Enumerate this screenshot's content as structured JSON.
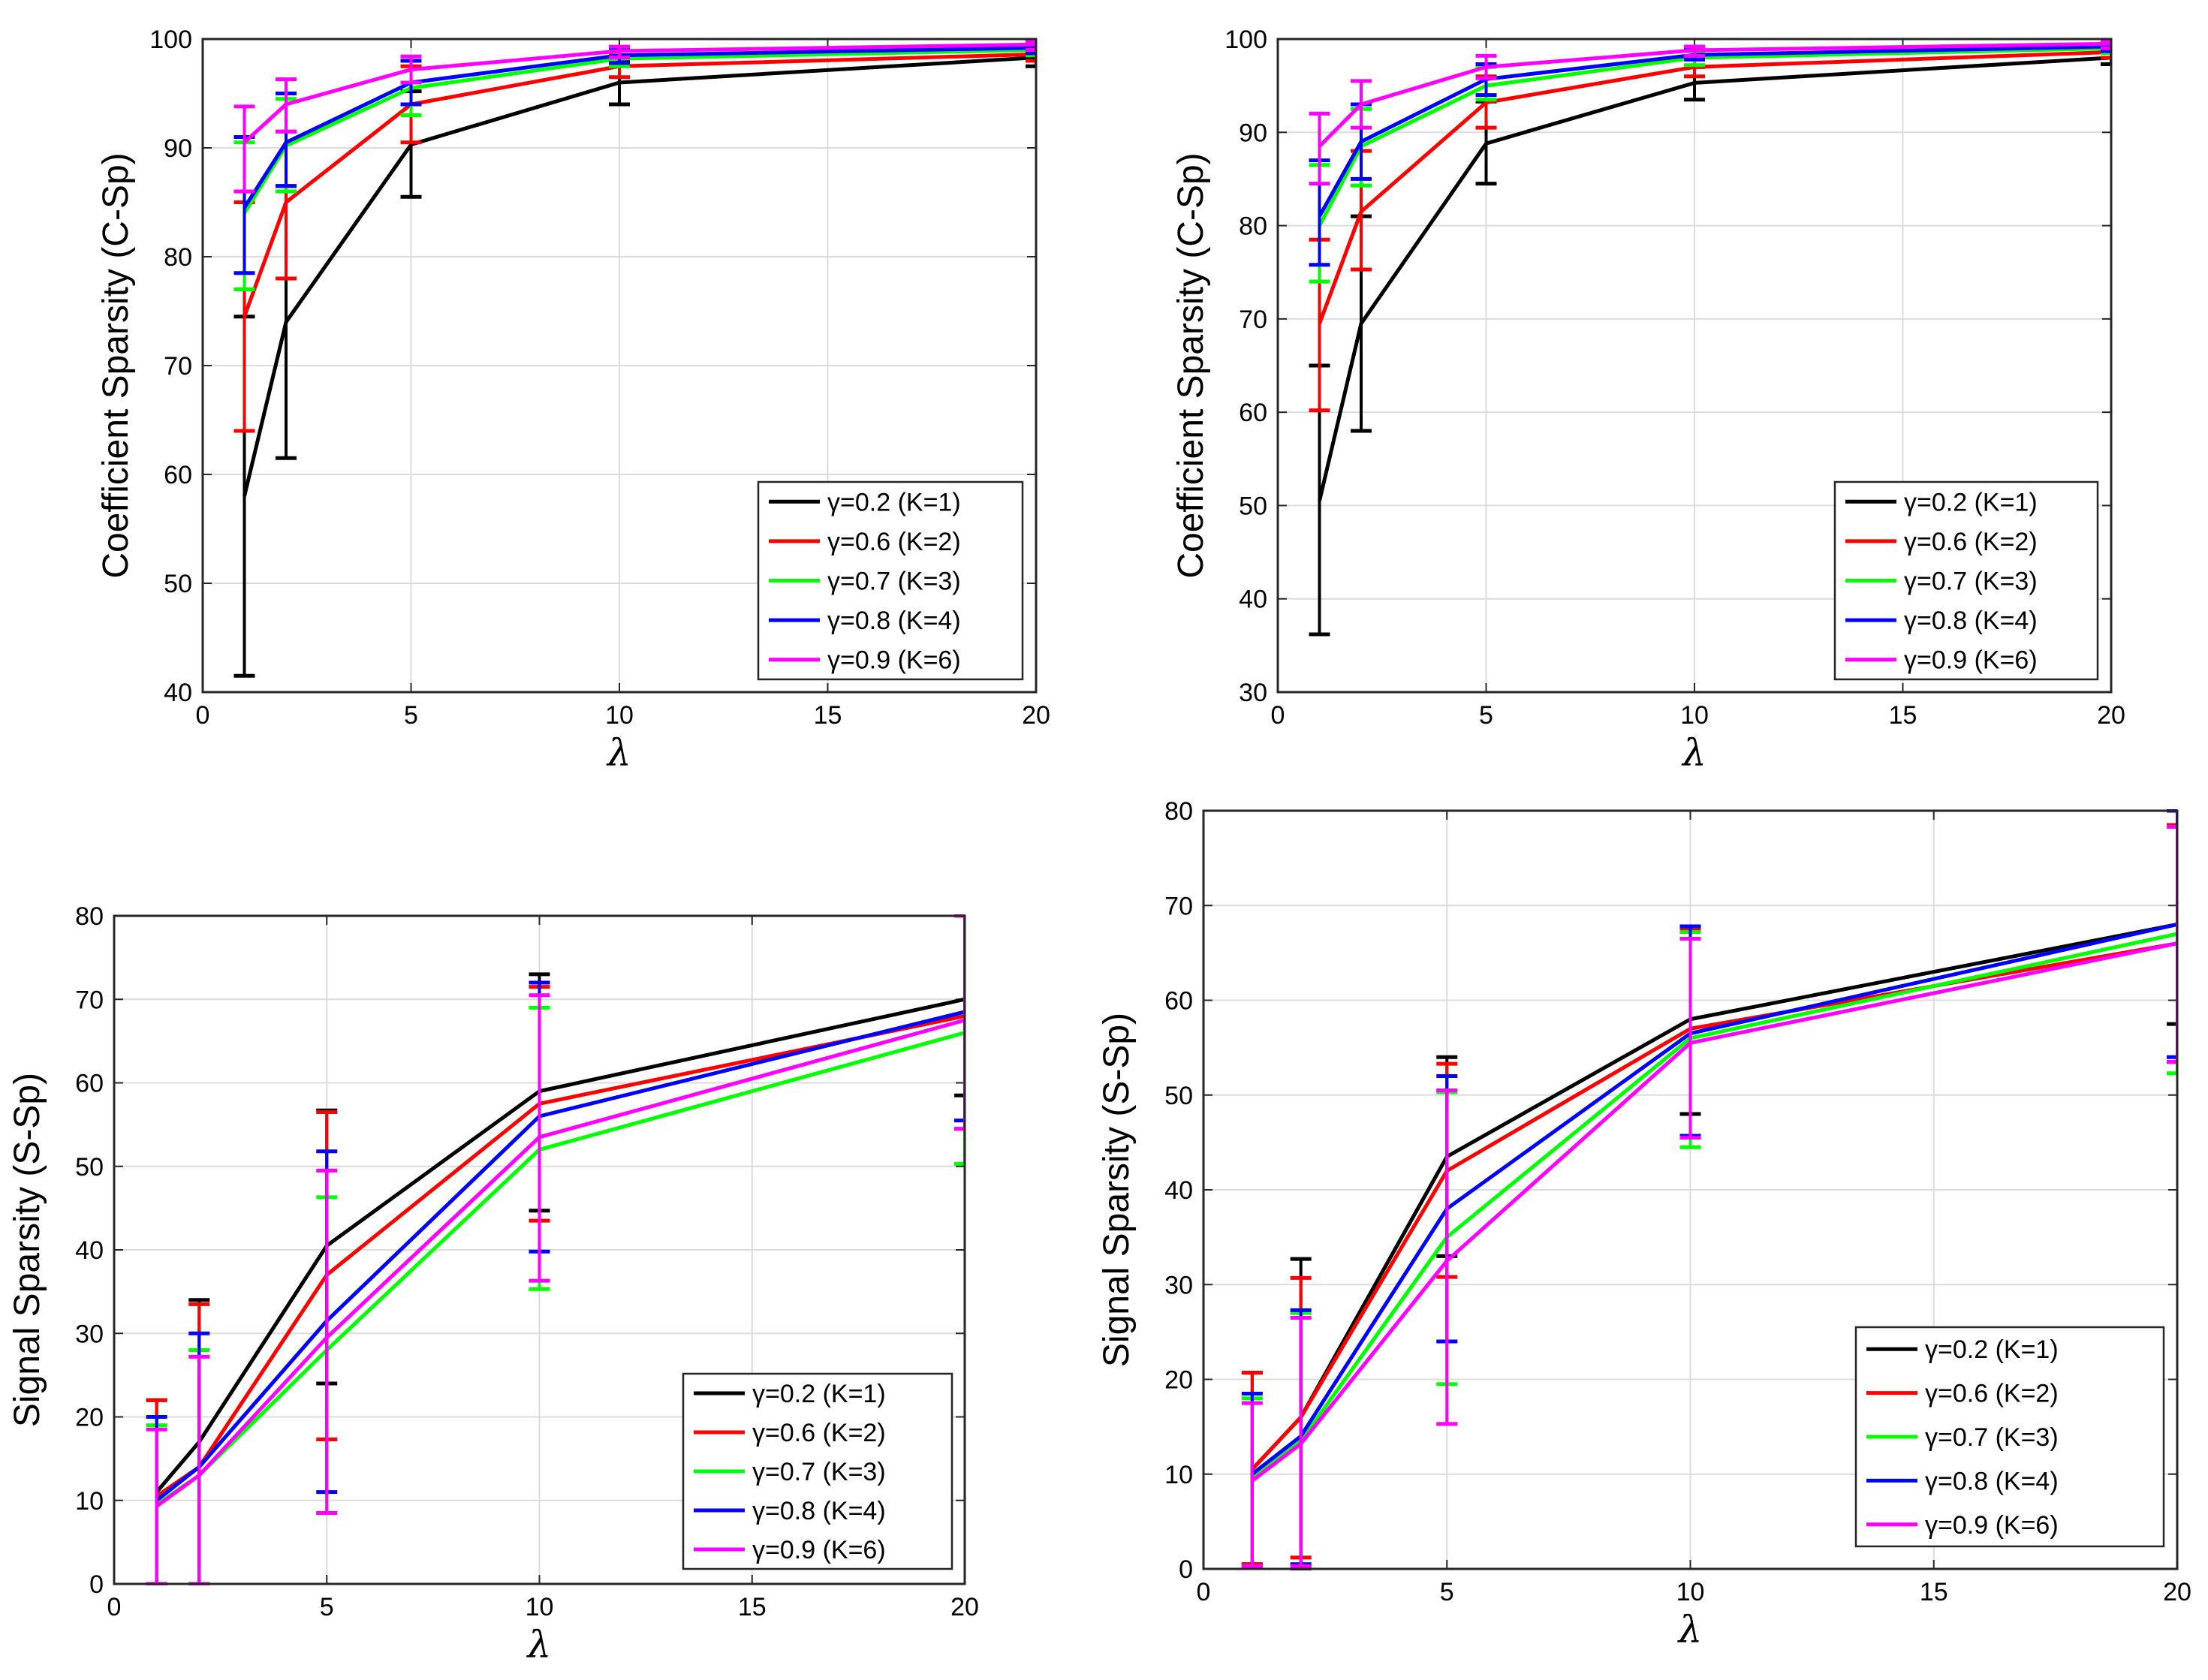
{
  "legend_labels": [
    "γ=0.2 (K=1)",
    "γ=0.6 (K=2)",
    "γ=0.7 (K=3)",
    "γ=0.8 (K=4)",
    "γ=0.9 (K=6)"
  ],
  "series_colors": [
    "#000000",
    "#ff0000",
    "#00ff00",
    "#0000ff",
    "#ff00ff"
  ],
  "chart_data": [
    {
      "type": "line",
      "panel": "top-left",
      "xlabel": "λ",
      "ylabel": "Coefficient Sparsity (C-Sp)",
      "xlim": [
        0,
        20
      ],
      "ylim": [
        40,
        100
      ],
      "xticks": [
        0,
        5,
        10,
        15,
        20
      ],
      "yticks": [
        40,
        50,
        60,
        70,
        80,
        90,
        100
      ],
      "grid": true,
      "legend_position": "bottom-right",
      "x": [
        1,
        2,
        5,
        10,
        20
      ],
      "series": [
        {
          "name": "γ=0.2 (K=1)",
          "values": [
            58,
            74,
            90.3,
            96,
            98.3
          ],
          "err_low": [
            41.5,
            61.5,
            85.5,
            94,
            97.5
          ],
          "err_high": [
            74.5,
            86.5,
            95.2,
            98,
            99
          ]
        },
        {
          "name": "γ=0.6 (K=2)",
          "values": [
            74.5,
            85,
            94,
            97.5,
            98.6
          ],
          "err_low": [
            64,
            78,
            90.5,
            96.5,
            98
          ],
          "err_high": [
            85,
            91.5,
            97.5,
            98.5,
            99.2
          ]
        },
        {
          "name": "γ=0.7 (K=3)",
          "values": [
            84,
            90.2,
            95.5,
            98.2,
            99
          ],
          "err_low": [
            77,
            86,
            93,
            97.5,
            98.5
          ],
          "err_high": [
            90.5,
            94.5,
            98,
            99,
            99.5
          ]
        },
        {
          "name": "γ=0.8 (K=4)",
          "values": [
            84.5,
            90.5,
            96,
            98.5,
            99.2
          ],
          "err_low": [
            78.5,
            86.5,
            94,
            97.8,
            98.7
          ],
          "err_high": [
            91,
            95,
            98,
            99.2,
            99.6
          ]
        },
        {
          "name": "γ=0.9 (K=6)",
          "values": [
            90.5,
            94,
            97.2,
            98.9,
            99.5
          ],
          "err_low": [
            86,
            91.5,
            96,
            98.3,
            99
          ],
          "err_high": [
            93.8,
            96.3,
            98.4,
            99.3,
            99.8
          ]
        }
      ]
    },
    {
      "type": "line",
      "panel": "top-right",
      "xlabel": "λ",
      "ylabel": "Coefficient Sparsity (C-Sp)",
      "xlim": [
        0,
        20
      ],
      "ylim": [
        30,
        100
      ],
      "xticks": [
        0,
        5,
        10,
        15,
        20
      ],
      "yticks": [
        30,
        40,
        50,
        60,
        70,
        80,
        90,
        100
      ],
      "grid": true,
      "legend_position": "bottom-right",
      "x": [
        1,
        2,
        5,
        10,
        20
      ],
      "series": [
        {
          "name": "γ=0.2 (K=1)",
          "values": [
            50.5,
            69.5,
            88.8,
            95.3,
            98
          ],
          "err_low": [
            36.2,
            58,
            84.5,
            93.5,
            97.3
          ],
          "err_high": [
            65,
            81,
            93.3,
            97,
            98.7
          ]
        },
        {
          "name": "γ=0.6 (K=2)",
          "values": [
            69.5,
            81.5,
            93.2,
            97,
            98.6
          ],
          "err_low": [
            60.2,
            75.3,
            90.5,
            96,
            98
          ],
          "err_high": [
            78.5,
            88,
            96,
            98,
            99.2
          ]
        },
        {
          "name": "γ=0.7 (K=3)",
          "values": [
            80,
            88.5,
            95,
            98,
            99
          ],
          "err_low": [
            74,
            84.3,
            93.5,
            97.2,
            98.5
          ],
          "err_high": [
            86.5,
            92.5,
            97,
            98.7,
            99.5
          ]
        },
        {
          "name": "γ=0.8 (K=4)",
          "values": [
            81,
            89,
            95.7,
            98.3,
            99.2
          ],
          "err_low": [
            75.8,
            85,
            94,
            97.8,
            98.7
          ],
          "err_high": [
            87,
            93,
            97.3,
            99,
            99.6
          ]
        },
        {
          "name": "γ=0.9 (K=6)",
          "values": [
            88.5,
            93,
            97,
            98.8,
            99.5
          ],
          "err_low": [
            84.5,
            90.5,
            95.8,
            98.2,
            99
          ],
          "err_high": [
            92,
            95.5,
            98.2,
            99.2,
            99.8
          ]
        }
      ]
    },
    {
      "type": "line",
      "panel": "bottom-left",
      "xlabel": "λ",
      "ylabel": "Signal Sparsity (S-Sp)",
      "xlim": [
        0,
        20
      ],
      "ylim": [
        0,
        80
      ],
      "xticks": [
        0,
        5,
        10,
        15,
        20
      ],
      "yticks": [
        0,
        10,
        20,
        30,
        40,
        50,
        60,
        70,
        80
      ],
      "grid": true,
      "legend_position": "bottom-right",
      "x": [
        1,
        2,
        5,
        10,
        20
      ],
      "series": [
        {
          "name": "γ=0.2 (K=1)",
          "values": [
            11,
            17,
            40.5,
            59,
            70
          ],
          "err_low": [
            0,
            0,
            24,
            44.7,
            58.5
          ],
          "err_high": [
            22,
            34,
            56.7,
            73,
            80
          ]
        },
        {
          "name": "γ=0.6 (K=2)",
          "values": [
            10.5,
            14,
            37,
            57.5,
            68
          ],
          "err_low": [
            0,
            0,
            17.3,
            43.5,
            54.5
          ],
          "err_high": [
            22,
            33.5,
            56.5,
            71.5,
            80
          ]
        },
        {
          "name": "γ=0.7 (K=3)",
          "values": [
            9.5,
            13,
            28,
            52,
            66
          ],
          "err_low": [
            0,
            0,
            8.5,
            35.3,
            50.3
          ],
          "err_high": [
            19,
            28,
            46.3,
            69,
            80
          ]
        },
        {
          "name": "γ=0.8 (K=4)",
          "values": [
            10,
            14,
            31.5,
            56,
            68.5
          ],
          "err_low": [
            0,
            0,
            11,
            39.8,
            55.5
          ],
          "err_high": [
            20,
            30,
            51.8,
            72,
            80
          ]
        },
        {
          "name": "γ=0.9 (K=6)",
          "values": [
            9.3,
            13,
            29.5,
            53.5,
            67.5
          ],
          "err_low": [
            0,
            0,
            8.5,
            36.3,
            54.5
          ],
          "err_high": [
            18.5,
            27.2,
            49.5,
            70.5,
            80
          ]
        }
      ]
    },
    {
      "type": "line",
      "panel": "bottom-right",
      "xlabel": "λ",
      "ylabel": "Signal Sparsity (S-Sp)",
      "xlim": [
        0,
        20
      ],
      "ylim": [
        0,
        80
      ],
      "xticks": [
        0,
        5,
        10,
        15,
        20
      ],
      "yticks": [
        0,
        10,
        20,
        30,
        40,
        50,
        60,
        70,
        80
      ],
      "grid": true,
      "legend_position": "bottom-right",
      "x": [
        1,
        2,
        5,
        10,
        20
      ],
      "series": [
        {
          "name": "γ=0.2 (K=1)",
          "values": [
            10.5,
            16,
            43.5,
            58,
            68
          ],
          "err_low": [
            0.5,
            0,
            33,
            48,
            57.5
          ],
          "err_high": [
            20.7,
            32.7,
            54,
            67.5,
            80
          ]
        },
        {
          "name": "γ=0.6 (K=2)",
          "values": [
            10.5,
            16,
            42,
            57,
            66
          ],
          "err_low": [
            0.5,
            1.2,
            30.8,
            45.7,
            53.5
          ],
          "err_high": [
            20.7,
            30.7,
            53.3,
            67.5,
            78.5
          ]
        },
        {
          "name": "γ=0.7 (K=3)",
          "values": [
            9.5,
            13.5,
            35,
            56,
            67
          ],
          "err_low": [
            0.3,
            0.5,
            19.5,
            44.5,
            52.3
          ],
          "err_high": [
            18,
            27,
            50.3,
            67.2,
            80
          ]
        },
        {
          "name": "γ=0.8 (K=4)",
          "values": [
            10,
            14,
            38,
            56.5,
            68
          ],
          "err_low": [
            0.3,
            0.5,
            24,
            45.7,
            54
          ],
          "err_high": [
            18.5,
            27.3,
            52,
            67.8,
            80
          ]
        },
        {
          "name": "γ=0.9 (K=6)",
          "values": [
            9.3,
            13.2,
            32.5,
            55.5,
            66
          ],
          "err_low": [
            0.3,
            0.3,
            15.3,
            45.5,
            53.5
          ],
          "err_high": [
            17.5,
            26.5,
            50.5,
            66.5,
            78.3
          ]
        }
      ]
    }
  ]
}
